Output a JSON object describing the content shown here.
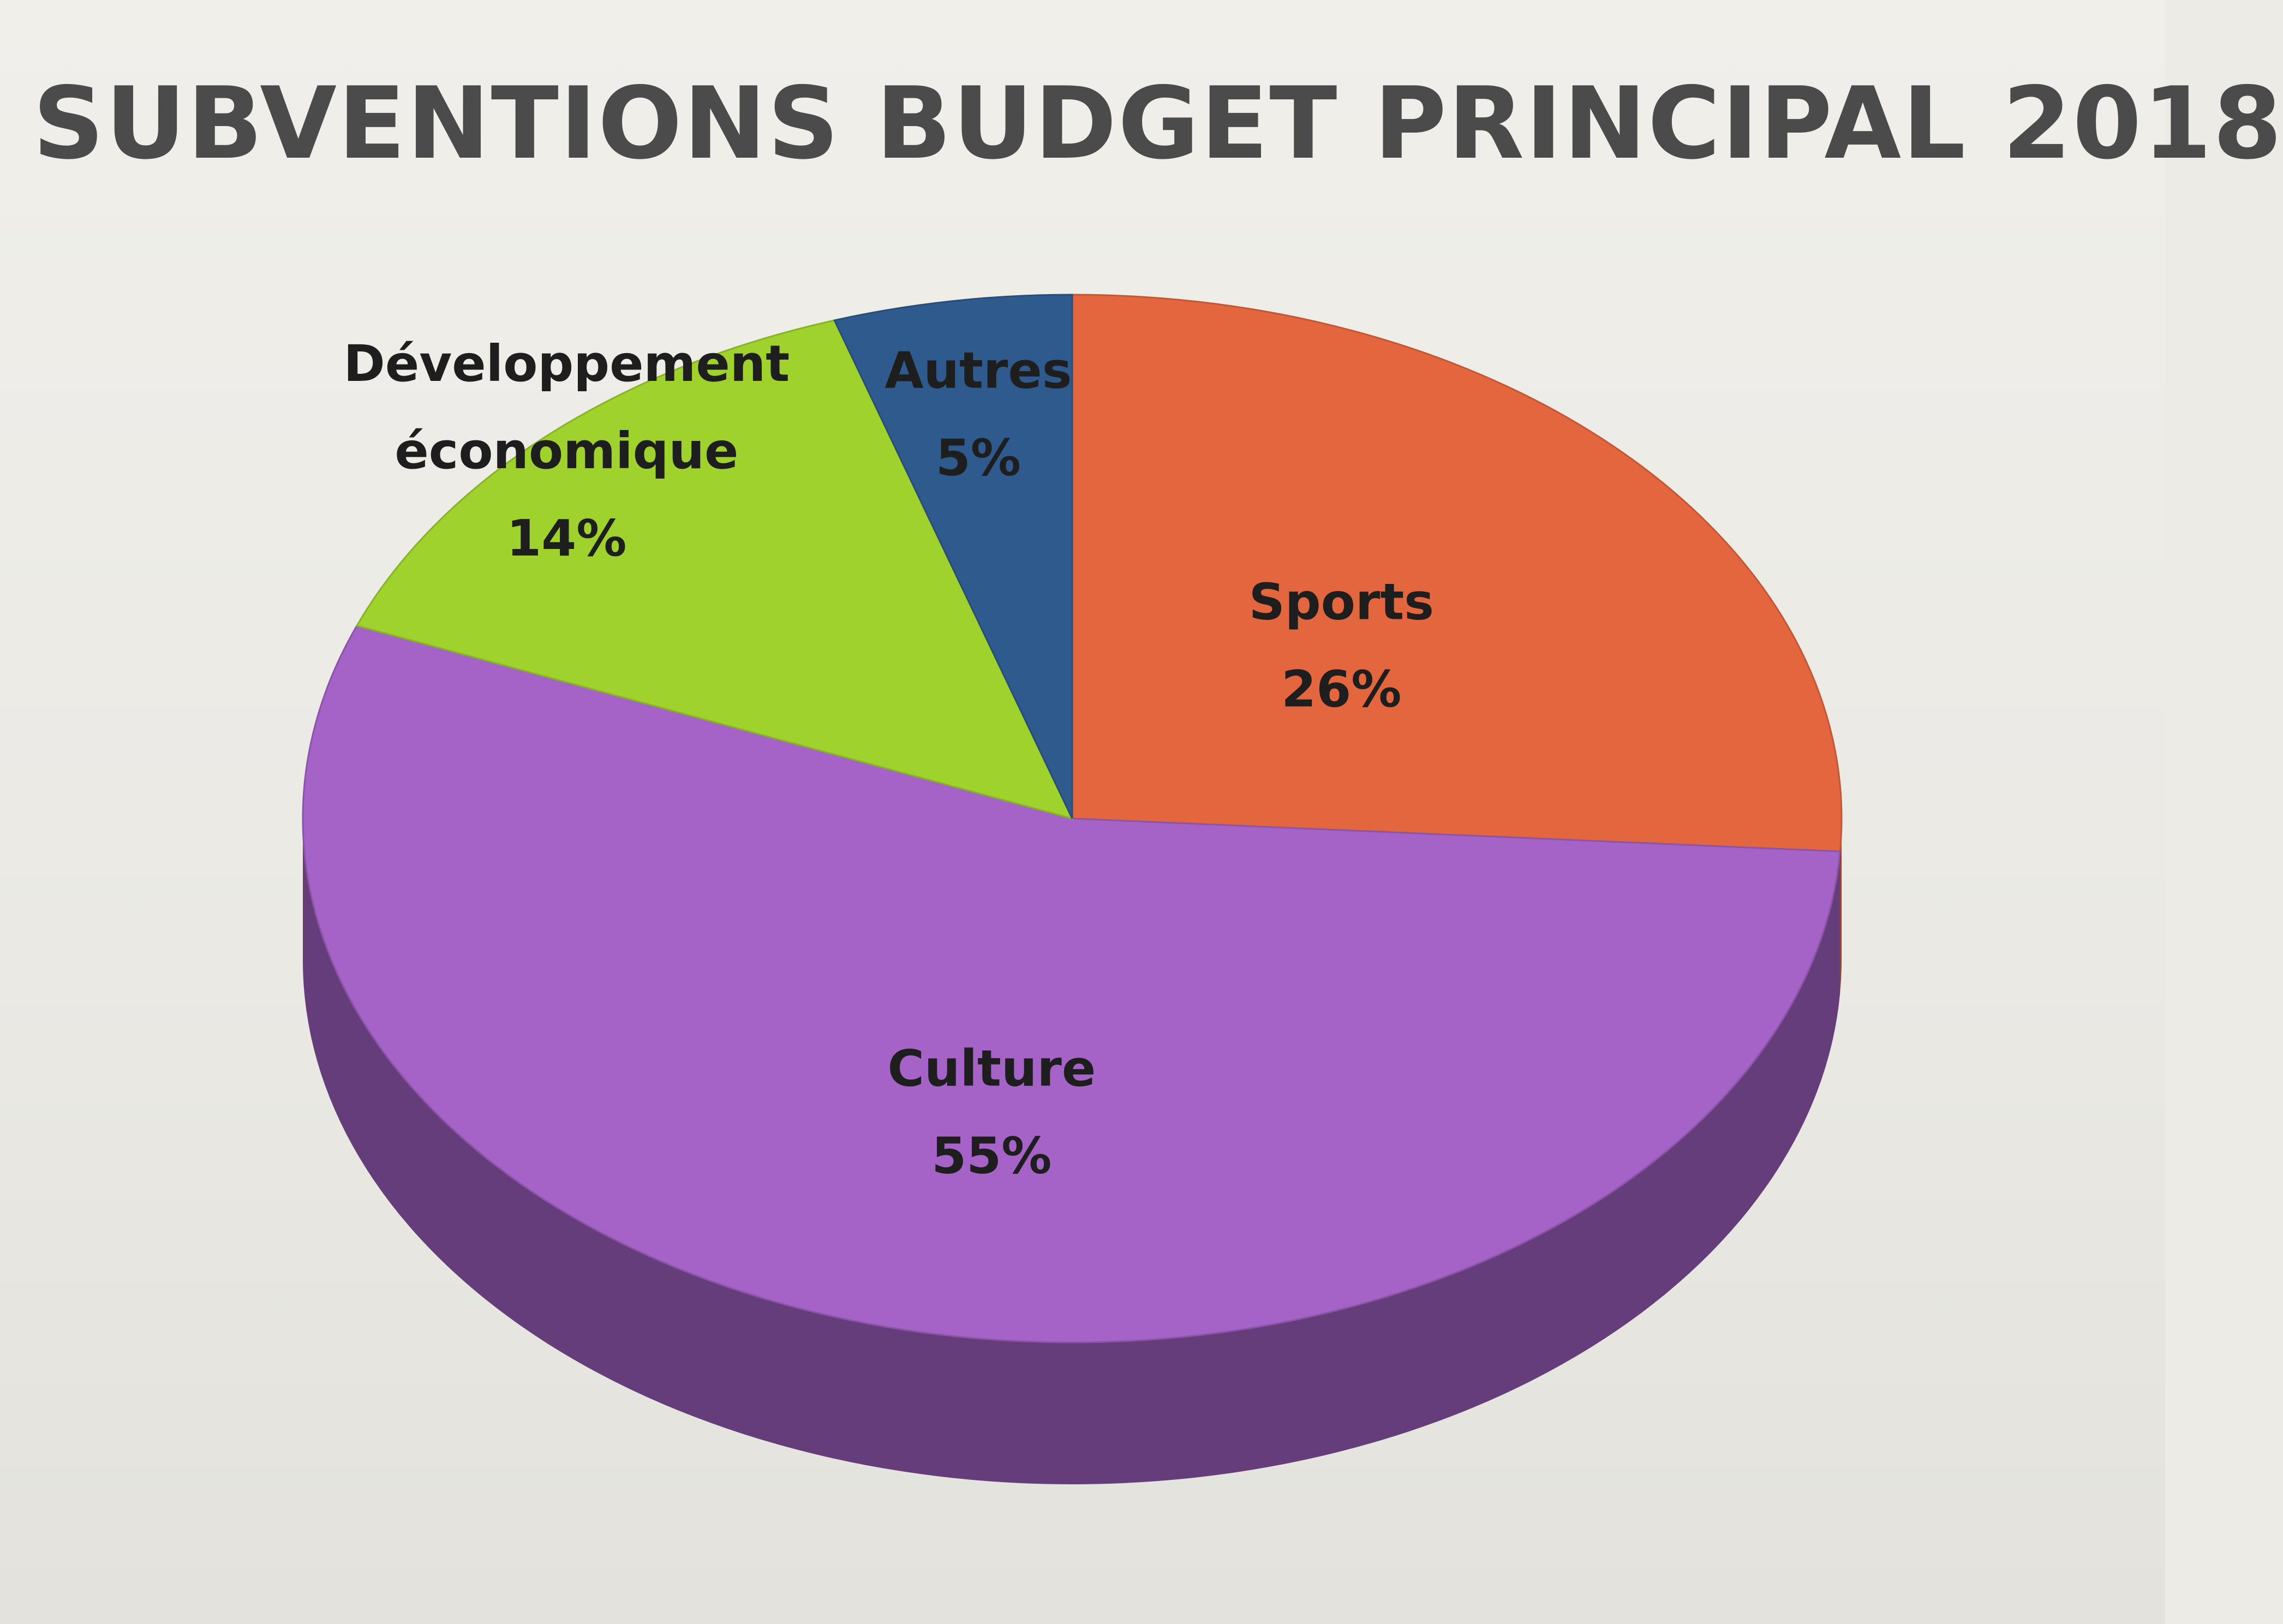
{
  "chart_data": {
    "type": "pie",
    "title": "SUBVENTIONS BUDGET PRINCIPAL 2018",
    "slices": [
      {
        "label": "Sports",
        "value": 26,
        "display": "26%",
        "color": "#e4663f"
      },
      {
        "label": "Culture",
        "value": 55,
        "display": "55%",
        "color": "#a563c7"
      },
      {
        "label": "Développement économique",
        "label_lines": [
          "Développement",
          "économique"
        ],
        "value": 14,
        "display": "14%",
        "color": "#9fd22c"
      },
      {
        "label": "Autres",
        "value": 5,
        "display": "5%",
        "color": "#2f5a8e"
      }
    ],
    "start": "12 o'clock",
    "direction": "clockwise",
    "style": "3d",
    "legend": "none"
  }
}
